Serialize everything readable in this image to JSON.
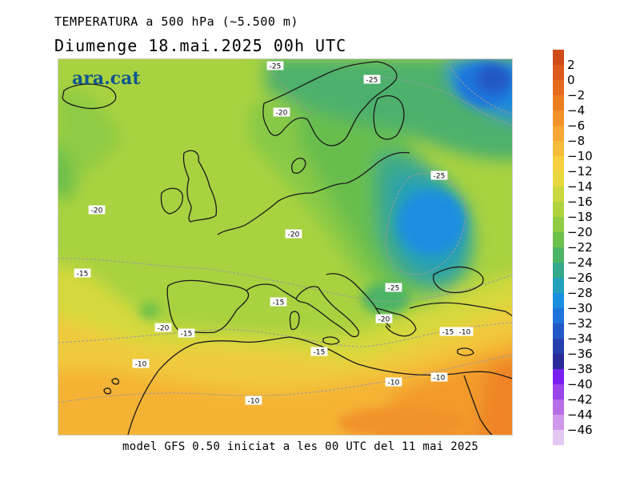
{
  "header": {
    "title_line1": "TEMPERATURA a 500 hPa (~5.500 m)",
    "title_line2": "Diumenge  18.mai.2025 00h UTC"
  },
  "footer": {
    "text": "model GFS 0.50 iniciat a les 00 UTC del 11 mai 2025"
  },
  "logo": {
    "text": "ara.cat"
  },
  "legend": {
    "labels": [
      "2",
      "0",
      "−2",
      "−4",
      "−6",
      "−8",
      "−10",
      "−12",
      "−14",
      "−16",
      "−18",
      "−20",
      "−22",
      "−24",
      "−26",
      "−28",
      "−30",
      "−32",
      "−34",
      "−36",
      "−38",
      "−40",
      "−42",
      "−44",
      "−46"
    ],
    "colors": [
      "#d04a1a",
      "#dc5a1c",
      "#e46a1e",
      "#ec7e22",
      "#f2922a",
      "#f6a632",
      "#f7bb3a",
      "#f6cf3f",
      "#e8d83e",
      "#cbd73e",
      "#aed33f",
      "#8fcb44",
      "#6cc04c",
      "#4eb466",
      "#34a88b",
      "#23a0bc",
      "#1c8ee0",
      "#1e74dc",
      "#2359c6",
      "#263fae",
      "#2a2a98",
      "#7b1ef2",
      "#9a44ea",
      "#b66ee6",
      "#cf98ec",
      "#e4c8f4"
    ],
    "scale_note": ""
  },
  "contour_labels": [
    {
      "text": "-25"
    },
    {
      "text": "-25"
    },
    {
      "text": "-20"
    },
    {
      "text": "-25"
    },
    {
      "text": "-20"
    },
    {
      "text": "-20"
    },
    {
      "text": "-15"
    },
    {
      "text": "-15"
    },
    {
      "text": "-25"
    },
    {
      "text": "-20"
    },
    {
      "text": "-15"
    },
    {
      "text": "-20"
    },
    {
      "text": "-15"
    },
    {
      "text": "-10"
    },
    {
      "text": "-15"
    },
    {
      "text": "-10"
    },
    {
      "text": "-10"
    },
    {
      "text": "-10"
    },
    {
      "text": "-10"
    }
  ]
}
